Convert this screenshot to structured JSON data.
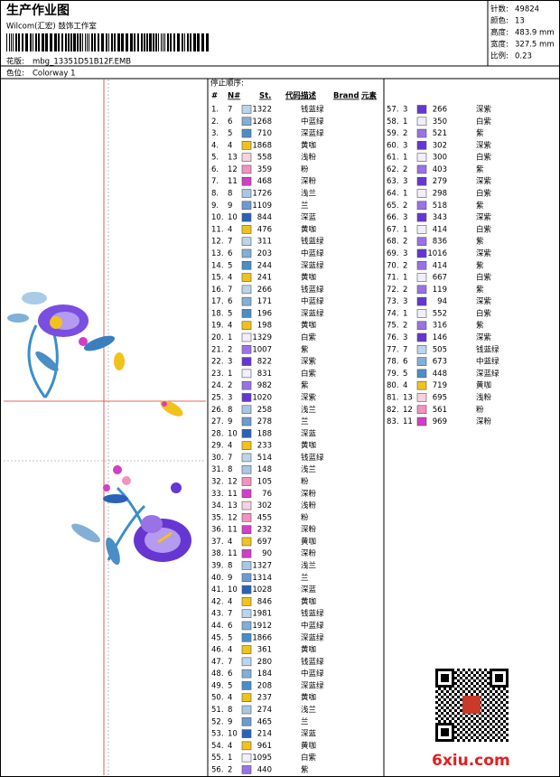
{
  "header": {
    "title": "生产作业图",
    "studio": "Wilcom(汇宏) 鼓饰工作室",
    "design_label": "花版:",
    "design": "mbg_13351D51B12F.EMB",
    "colorway_label": "色位:",
    "colorway": "Colorway 1"
  },
  "info": [
    [
      "针数:",
      "49824"
    ],
    [
      "颜色:",
      "13"
    ],
    [
      "高度:",
      "483.9 mm"
    ],
    [
      "宽度:",
      "327.5 mm"
    ],
    [
      "比例:",
      "0.23"
    ]
  ],
  "table": {
    "caption": "停止顺序:",
    "columns": [
      "#",
      "N#",
      "St.",
      "代码",
      "描述",
      "Brand",
      "元素"
    ],
    "needle_colors": {
      "1": "#f2eefa",
      "2": "#9a72e6",
      "3": "#6636d2",
      "4": "#f2c21c",
      "5": "#4a8ec6",
      "6": "#82afd6",
      "7": "#bcd4ea",
      "8": "#a9c6e6",
      "9": "#6e9ad2",
      "10": "#2a62ba",
      "11": "#d23ec6",
      "12": "#f292c0",
      "13": "#f8d2e0"
    },
    "rows": [
      [
        "1.",
        "7",
        "1322",
        "钱蓝绿"
      ],
      [
        "2.",
        "6",
        "1268",
        "中蓝绿"
      ],
      [
        "3.",
        "5",
        "710",
        "深蓝绿"
      ],
      [
        "4.",
        "4",
        "1868",
        "黄咖"
      ],
      [
        "5.",
        "13",
        "558",
        "浅粉"
      ],
      [
        "6.",
        "12",
        "359",
        "粉"
      ],
      [
        "7.",
        "11",
        "468",
        "深粉"
      ],
      [
        "8.",
        "8",
        "1726",
        "浅兰"
      ],
      [
        "9.",
        "9",
        "1109",
        "兰"
      ],
      [
        "10.",
        "10",
        "844",
        "深蓝"
      ],
      [
        "11.",
        "4",
        "476",
        "黄咖"
      ],
      [
        "12.",
        "7",
        "311",
        "钱蓝绿"
      ],
      [
        "13.",
        "6",
        "203",
        "中蓝绿"
      ],
      [
        "14.",
        "5",
        "244",
        "深蓝绿"
      ],
      [
        "15.",
        "4",
        "241",
        "黄咖"
      ],
      [
        "16.",
        "7",
        "266",
        "钱蓝绿"
      ],
      [
        "17.",
        "6",
        "171",
        "中蓝绿"
      ],
      [
        "18.",
        "5",
        "196",
        "深蓝绿"
      ],
      [
        "19.",
        "4",
        "198",
        "黄咖"
      ],
      [
        "20.",
        "1",
        "1329",
        "白紫"
      ],
      [
        "21.",
        "2",
        "1007",
        "紫"
      ],
      [
        "22.",
        "3",
        "822",
        "深紫"
      ],
      [
        "23.",
        "1",
        "831",
        "白紫"
      ],
      [
        "24.",
        "2",
        "982",
        "紫"
      ],
      [
        "25.",
        "3",
        "1020",
        "深紫"
      ],
      [
        "26.",
        "8",
        "258",
        "浅兰"
      ],
      [
        "27.",
        "9",
        "278",
        "兰"
      ],
      [
        "28.",
        "10",
        "188",
        "深蓝"
      ],
      [
        "29.",
        "4",
        "233",
        "黄咖"
      ],
      [
        "30.",
        "7",
        "514",
        "钱蓝绿"
      ],
      [
        "31.",
        "8",
        "148",
        "浅兰"
      ],
      [
        "32.",
        "12",
        "105",
        "粉"
      ],
      [
        "33.",
        "11",
        "76",
        "深粉"
      ],
      [
        "34.",
        "13",
        "302",
        "浅粉"
      ],
      [
        "35.",
        "12",
        "455",
        "粉"
      ],
      [
        "36.",
        "11",
        "232",
        "深粉"
      ],
      [
        "37.",
        "4",
        "697",
        "黄咖"
      ],
      [
        "38.",
        "11",
        "90",
        "深粉"
      ],
      [
        "39.",
        "8",
        "1327",
        "浅兰"
      ],
      [
        "40.",
        "9",
        "1314",
        "兰"
      ],
      [
        "41.",
        "10",
        "1028",
        "深蓝"
      ],
      [
        "42.",
        "4",
        "846",
        "黄咖"
      ],
      [
        "43.",
        "7",
        "1981",
        "钱蓝绿"
      ],
      [
        "44.",
        "6",
        "1912",
        "中蓝绿"
      ],
      [
        "45.",
        "5",
        "1866",
        "深蓝绿"
      ],
      [
        "46.",
        "4",
        "361",
        "黄咖"
      ],
      [
        "47.",
        "7",
        "280",
        "钱蓝绿"
      ],
      [
        "48.",
        "6",
        "184",
        "中蓝绿"
      ],
      [
        "49.",
        "5",
        "208",
        "深蓝绿"
      ],
      [
        "50.",
        "4",
        "237",
        "黄咖"
      ],
      [
        "51.",
        "8",
        "274",
        "浅兰"
      ],
      [
        "52.",
        "9",
        "465",
        "兰"
      ],
      [
        "53.",
        "10",
        "214",
        "深蓝"
      ],
      [
        "54.",
        "4",
        "961",
        "黄咖"
      ],
      [
        "55.",
        "1",
        "1095",
        "白紫"
      ],
      [
        "56.",
        "2",
        "440",
        "紫"
      ],
      [
        "57.",
        "3",
        "266",
        "深紫"
      ],
      [
        "58.",
        "1",
        "350",
        "白紫"
      ],
      [
        "59.",
        "2",
        "521",
        "紫"
      ],
      [
        "60.",
        "3",
        "302",
        "深紫"
      ],
      [
        "61.",
        "1",
        "300",
        "白紫"
      ],
      [
        "62.",
        "2",
        "403",
        "紫"
      ],
      [
        "63.",
        "3",
        "279",
        "深紫"
      ],
      [
        "64.",
        "1",
        "298",
        "白紫"
      ],
      [
        "65.",
        "2",
        "518",
        "紫"
      ],
      [
        "66.",
        "3",
        "343",
        "深紫"
      ],
      [
        "67.",
        "1",
        "414",
        "白紫"
      ],
      [
        "68.",
        "2",
        "836",
        "紫"
      ],
      [
        "69.",
        "3",
        "1016",
        "深紫"
      ],
      [
        "70.",
        "2",
        "414",
        "紫"
      ],
      [
        "71.",
        "1",
        "667",
        "白紫"
      ],
      [
        "72.",
        "2",
        "119",
        "紫"
      ],
      [
        "73.",
        "3",
        "94",
        "深紫"
      ],
      [
        "74.",
        "1",
        "552",
        "白紫"
      ],
      [
        "75.",
        "2",
        "316",
        "紫"
      ],
      [
        "76.",
        "3",
        "146",
        "深紫"
      ],
      [
        "77.",
        "7",
        "505",
        "钱蓝绿"
      ],
      [
        "78.",
        "6",
        "673",
        "中蓝绿"
      ],
      [
        "79.",
        "5",
        "448",
        "深蓝绿"
      ],
      [
        "80.",
        "4",
        "719",
        "黄咖"
      ],
      [
        "81.",
        "13",
        "695",
        "浅粉"
      ],
      [
        "82.",
        "12",
        "561",
        "粉"
      ],
      [
        "83.",
        "11",
        "969",
        "深粉"
      ]
    ]
  },
  "watermark": "6xiu.com"
}
